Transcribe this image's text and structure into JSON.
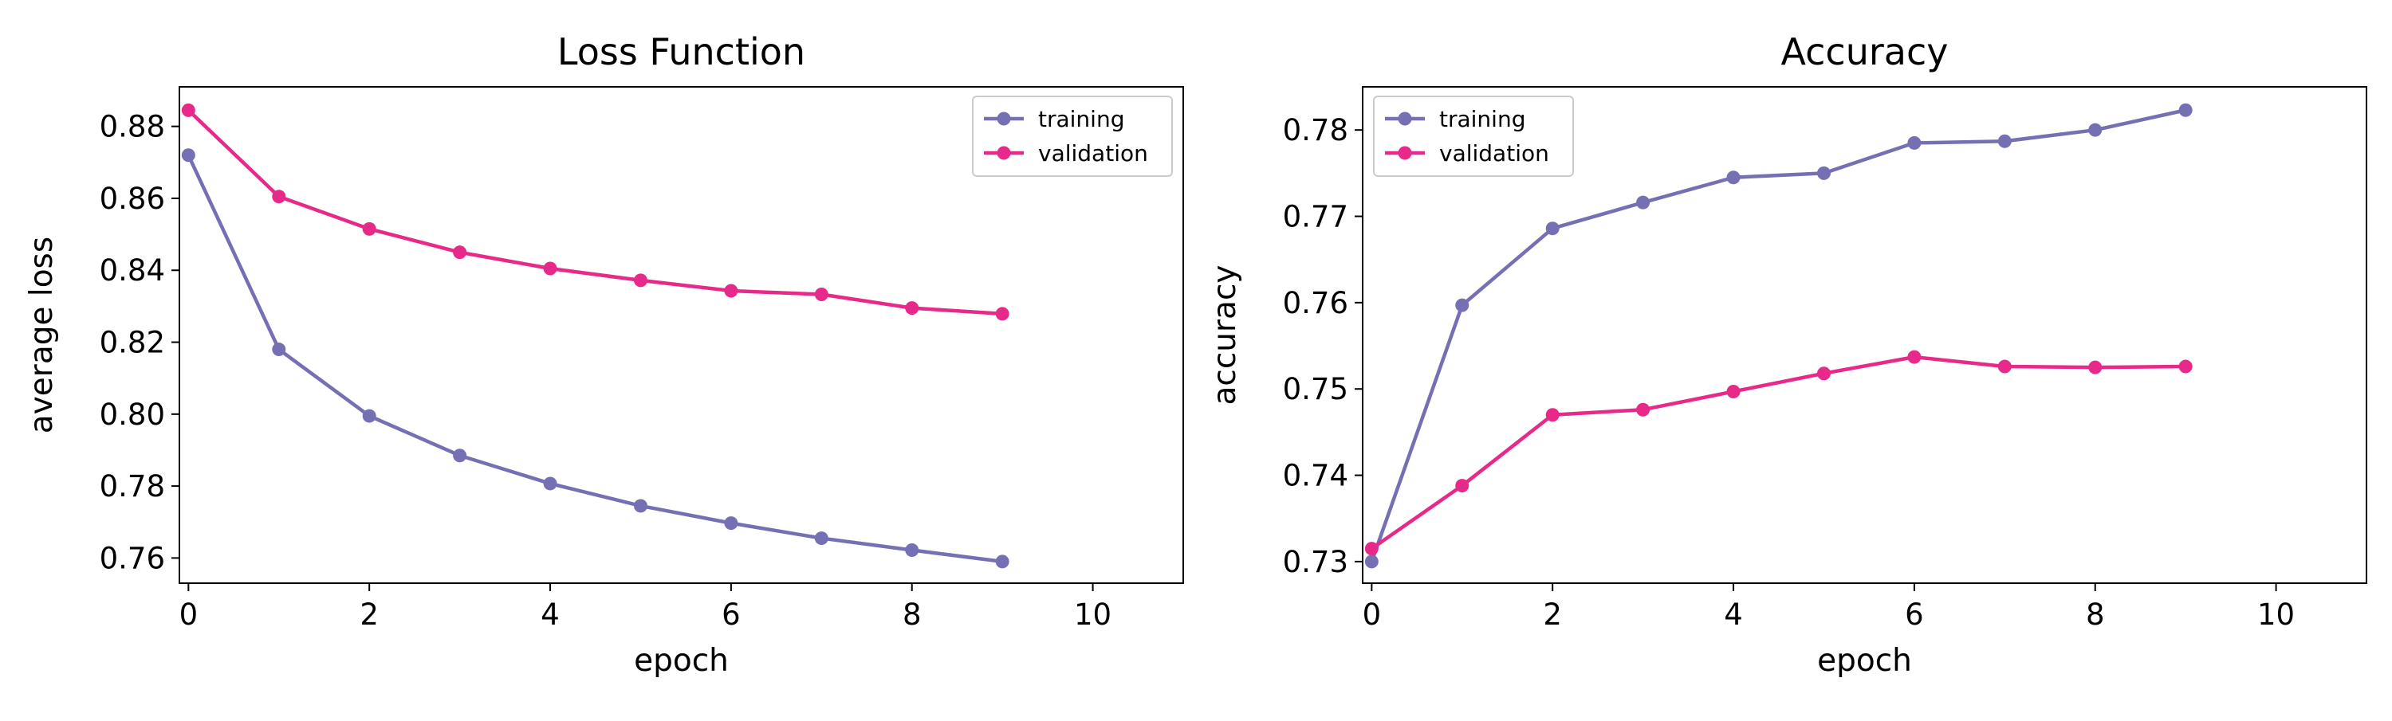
{
  "chart_data": [
    {
      "type": "line",
      "title": "Loss Function",
      "xlabel": "epoch",
      "ylabel": "average loss",
      "xlim": [
        -0.1,
        11
      ],
      "ylim": [
        0.753,
        0.891
      ],
      "xticks": [
        "0",
        "2",
        "4",
        "6",
        "8",
        "10"
      ],
      "yticks": [
        "0.76",
        "0.78",
        "0.80",
        "0.82",
        "0.84",
        "0.86",
        "0.88"
      ],
      "legend_position": "top-right",
      "grid": false,
      "x": [
        0,
        1,
        2,
        3,
        4,
        5,
        6,
        7,
        8,
        9
      ],
      "series": [
        {
          "name": "training",
          "color": "#7570b3",
          "values": [
            0.872,
            0.818,
            0.7995,
            0.7885,
            0.7807,
            0.7745,
            0.7697,
            0.7655,
            0.7622,
            0.759
          ]
        },
        {
          "name": "validation",
          "color": "#e7298a",
          "values": [
            0.8845,
            0.8605,
            0.8515,
            0.845,
            0.8405,
            0.8372,
            0.8343,
            0.8333,
            0.8295,
            0.8279
          ]
        }
      ]
    },
    {
      "type": "line",
      "title": "Accuracy",
      "xlabel": "epoch",
      "ylabel": "accuracy",
      "xlim": [
        -0.1,
        11
      ],
      "ylim": [
        0.7275,
        0.785
      ],
      "xticks": [
        "0",
        "2",
        "4",
        "6",
        "8",
        "10"
      ],
      "yticks": [
        "0.73",
        "0.74",
        "0.75",
        "0.76",
        "0.77",
        "0.78"
      ],
      "legend_position": "top-left",
      "grid": false,
      "x": [
        0,
        1,
        2,
        3,
        4,
        5,
        6,
        7,
        8,
        9
      ],
      "series": [
        {
          "name": "training",
          "color": "#7570b3",
          "values": [
            0.73,
            0.7597,
            0.7686,
            0.7716,
            0.7745,
            0.775,
            0.7785,
            0.7787,
            0.78,
            0.7823
          ]
        },
        {
          "name": "validation",
          "color": "#e7298a",
          "values": [
            0.7315,
            0.7388,
            0.747,
            0.7476,
            0.7497,
            0.7518,
            0.7537,
            0.7526,
            0.7525,
            0.7526
          ]
        }
      ]
    }
  ]
}
